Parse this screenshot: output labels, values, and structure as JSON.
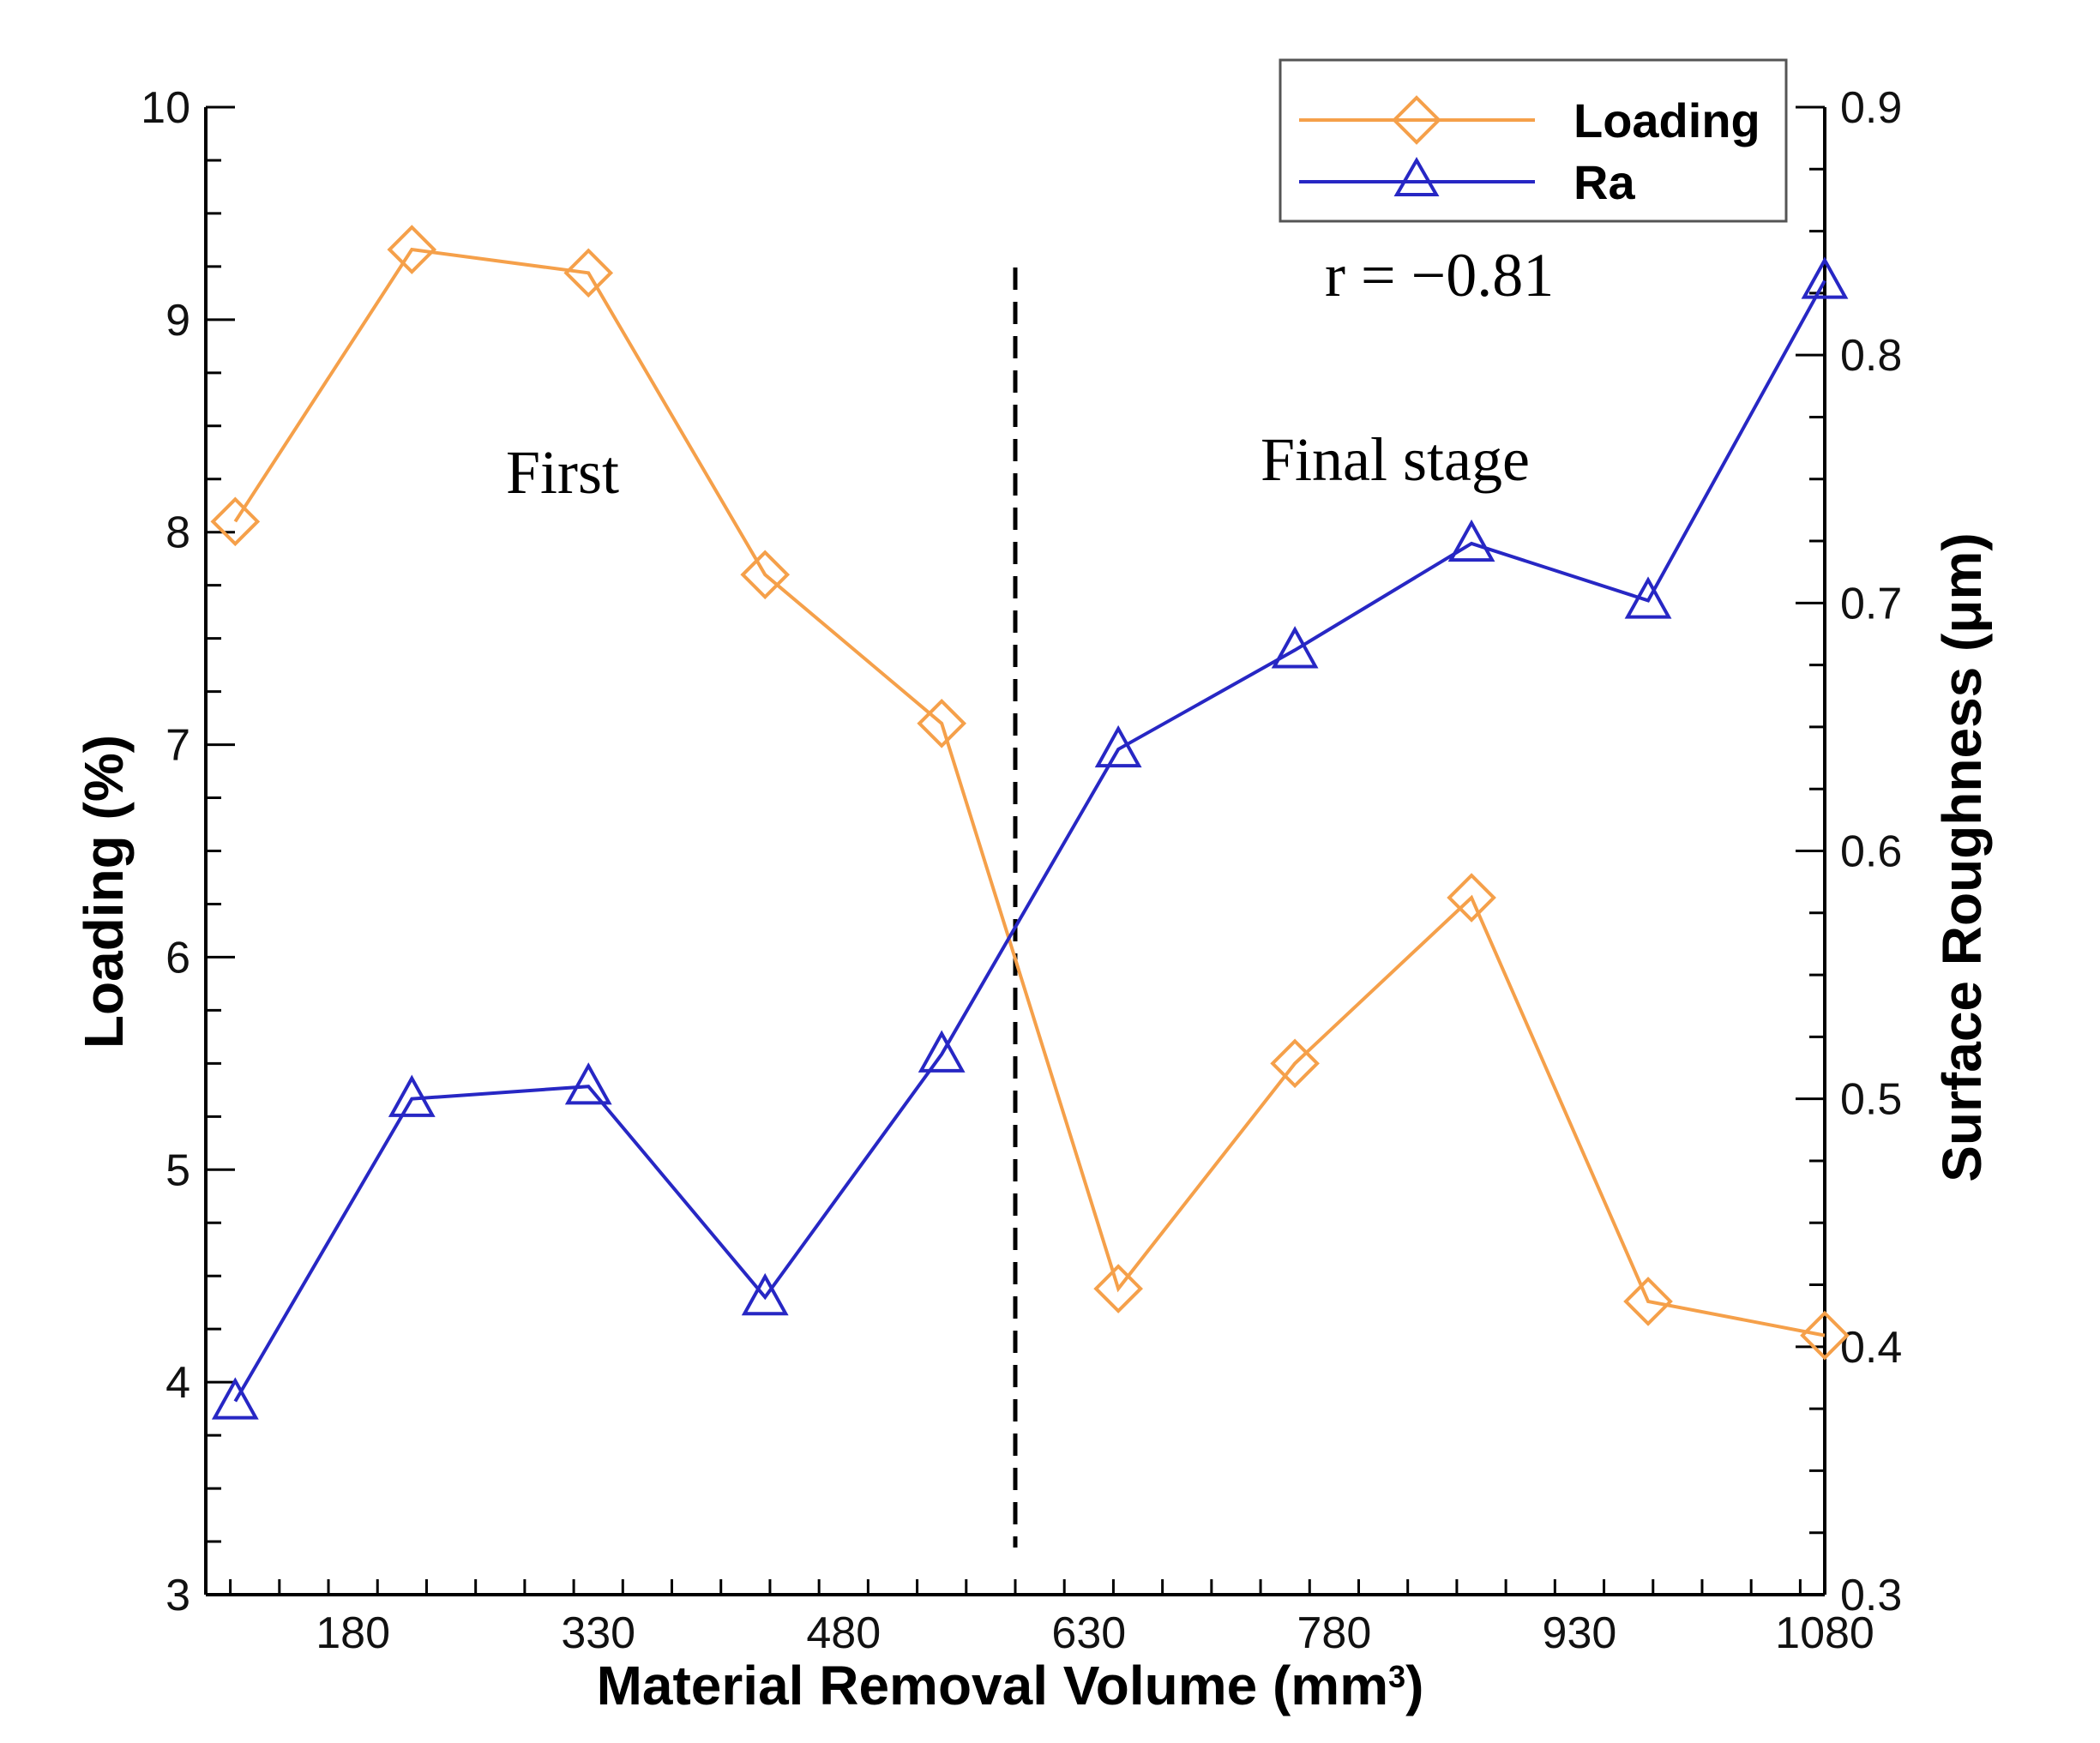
{
  "chart_data": {
    "type": "line",
    "title": "",
    "xlabel": "Material Removal Volume (mm",
    "xlabel_sup": "3",
    "xlabel_close": ")",
    "ylabel_left": "Loading (%)",
    "ylabel_right": "Surface Roughness (μm)",
    "xlim": [
      90,
      1080
    ],
    "ylim_left": [
      3,
      10
    ],
    "ylim_right": [
      0.3,
      0.9
    ],
    "x_ticks": [
      180,
      330,
      480,
      630,
      780,
      930,
      1080
    ],
    "x_tick_labels": [
      "180",
      "330",
      "480",
      "630",
      "780",
      "930",
      "1080"
    ],
    "y_left_ticks": [
      3,
      4,
      5,
      6,
      7,
      8,
      9,
      10
    ],
    "y_left_tick_labels": [
      "3",
      "4",
      "5",
      "6",
      "7",
      "8",
      "9",
      "10"
    ],
    "y_right_ticks": [
      0.3,
      0.4,
      0.5,
      0.6,
      0.7,
      0.8,
      0.9
    ],
    "y_right_tick_labels": [
      "0.3",
      "0.4",
      "0.5",
      "0.6",
      "0.7",
      "0.8",
      "0.9"
    ],
    "x": [
      108,
      216,
      324,
      432,
      540,
      648,
      756,
      864,
      972,
      1080
    ],
    "series": [
      {
        "name": "Loading",
        "axis": "left",
        "marker": "diamond",
        "color": "#f5a04a",
        "values": [
          8.05,
          9.33,
          9.22,
          7.8,
          7.1,
          4.44,
          5.5,
          6.28,
          4.38,
          4.22
        ]
      },
      {
        "name": "Ra",
        "axis": "right",
        "marker": "triangle",
        "color": "#2727c4",
        "values": [
          0.378,
          0.5,
          0.505,
          0.42,
          0.518,
          0.641,
          0.681,
          0.724,
          0.701,
          0.83
        ]
      }
    ],
    "divider_x": 585,
    "annotations": [
      {
        "text": "First"
      },
      {
        "text": "Final stage"
      },
      {
        "text": "r = −0.81"
      }
    ],
    "legend_position": "top-right"
  }
}
